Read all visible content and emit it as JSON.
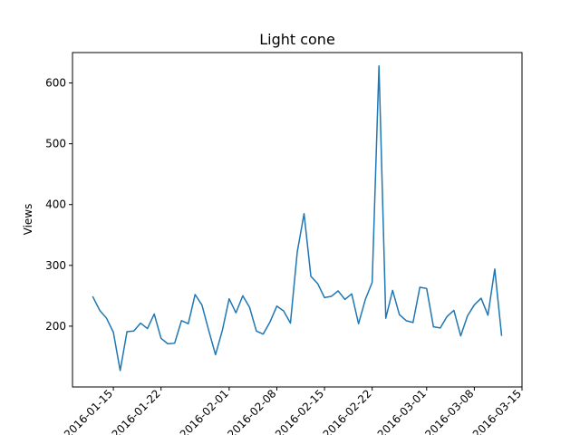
{
  "chart_data": {
    "type": "line",
    "title": "Light cone",
    "xlabel": "",
    "ylabel": "Views",
    "x_start": "2016-01-12",
    "x_ticks": [
      "2016-01-15",
      "2016-01-22",
      "2016-02-01",
      "2016-02-08",
      "2016-02-15",
      "2016-02-22",
      "2016-03-01",
      "2016-03-08",
      "2016-03-15"
    ],
    "ylim": [
      100,
      650
    ],
    "y_ticks": [
      200,
      300,
      400,
      500,
      600
    ],
    "grid": false,
    "series": [
      {
        "name": "",
        "color": "#1f77b4",
        "values": [
          248,
          226,
          213,
          190,
          127,
          191,
          192,
          205,
          196,
          220,
          180,
          171,
          172,
          209,
          204,
          252,
          235,
          193,
          153,
          193,
          245,
          222,
          250,
          231,
          192,
          187,
          207,
          233,
          225,
          205,
          322,
          385,
          282,
          270,
          247,
          249,
          258,
          244,
          253,
          204,
          244,
          272,
          628,
          213,
          259,
          219,
          209,
          206,
          264,
          262,
          199,
          197,
          216,
          226,
          184,
          217,
          235,
          246,
          218,
          294,
          185
        ]
      }
    ]
  }
}
